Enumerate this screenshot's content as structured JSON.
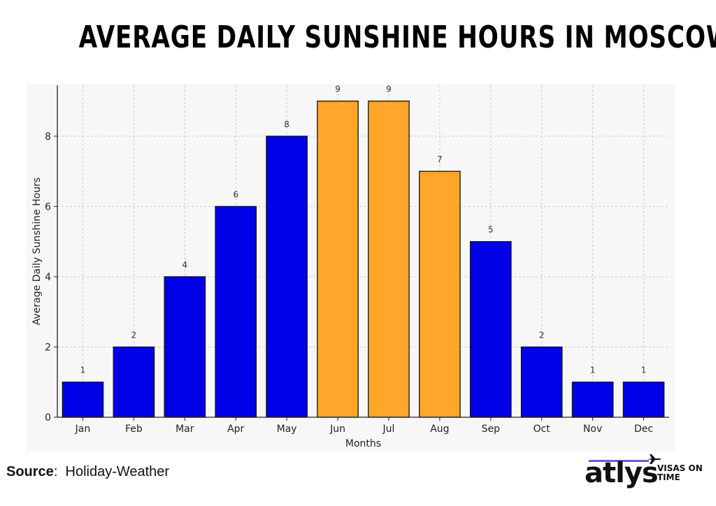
{
  "title": "AVERAGE DAILY SUNSHINE HOURS IN MOSCOW",
  "source": {
    "label": "Source",
    "separator": ":",
    "value": "Holiday-Weather"
  },
  "brand": {
    "name": "atlys",
    "tag_line1": "VISAS ON",
    "tag_line2": "TIME"
  },
  "colors": {
    "blue": "#0000e6",
    "orange": "#ffa62b",
    "grid": "#c8c8c8",
    "panel": "#f7f7f7"
  },
  "chart_data": {
    "type": "bar",
    "title": "",
    "xlabel": "Months",
    "ylabel": "Average Daily Sunshine Hours",
    "ylim": [
      0,
      9.45
    ],
    "yticks": [
      0,
      2,
      4,
      6,
      8
    ],
    "grid": true,
    "categories": [
      "Jan",
      "Feb",
      "Mar",
      "Apr",
      "May",
      "Jun",
      "Jul",
      "Aug",
      "Sep",
      "Oct",
      "Nov",
      "Dec"
    ],
    "values": [
      1,
      2,
      4,
      6,
      8,
      9,
      9,
      7,
      5,
      2,
      1,
      1
    ],
    "bar_colors": [
      "blue",
      "blue",
      "blue",
      "blue",
      "blue",
      "orange",
      "orange",
      "orange",
      "blue",
      "blue",
      "blue",
      "blue"
    ]
  }
}
